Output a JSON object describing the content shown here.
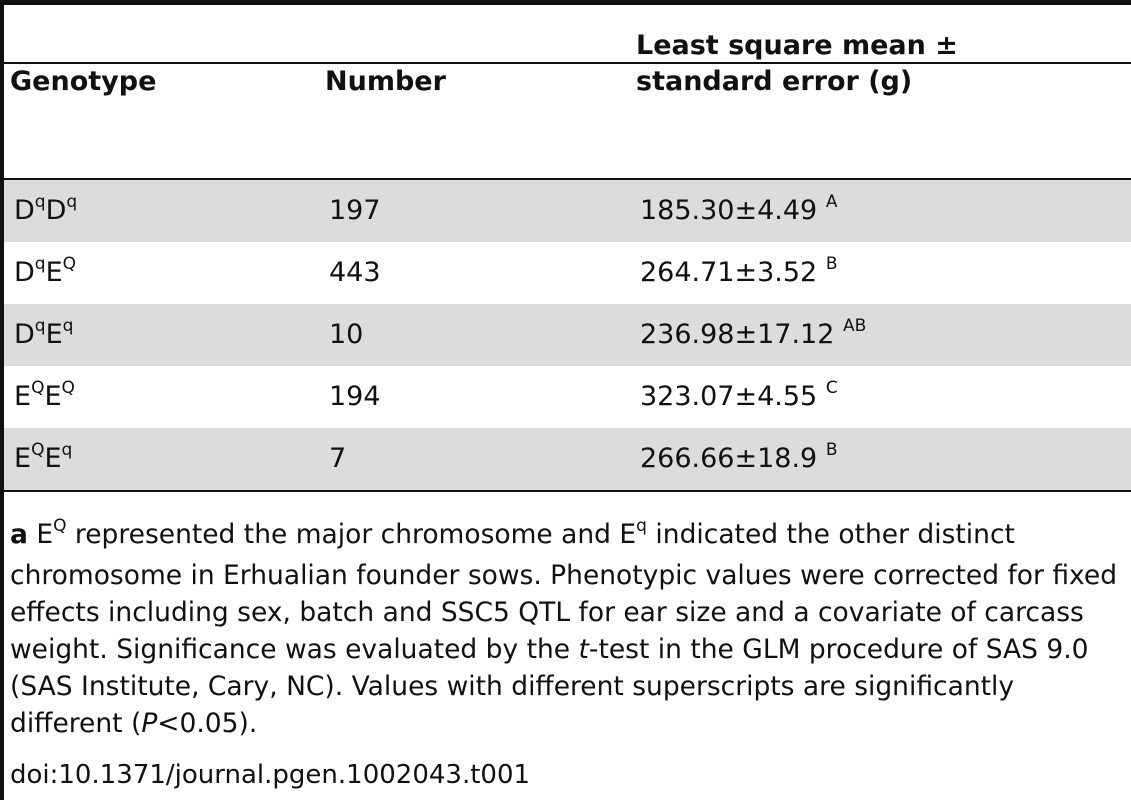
{
  "table": {
    "headers": {
      "genotype": "Genotype",
      "number": "Number",
      "lsm_line1": "Least square mean ±",
      "lsm_line2": "standard error (g)"
    },
    "rows": [
      {
        "g1": "D",
        "s1": "q",
        "g2": "D",
        "s2": "q",
        "number": "197",
        "value": "185.30±4.49",
        "letter": "A"
      },
      {
        "g1": "D",
        "s1": "q",
        "g2": "E",
        "s2": "Q",
        "number": "443",
        "value": "264.71±3.52",
        "letter": "B"
      },
      {
        "g1": "D",
        "s1": "q",
        "g2": "E",
        "s2": "q",
        "number": "10",
        "value": "236.98±17.12",
        "letter": "AB"
      },
      {
        "g1": "E",
        "s1": "Q",
        "g2": "E",
        "s2": "Q",
        "number": "194",
        "value": "323.07±4.55",
        "letter": "C"
      },
      {
        "g1": "E",
        "s1": "Q",
        "g2": "E",
        "s2": "q",
        "number": "7",
        "value": "266.66±18.9",
        "letter": "B"
      }
    ]
  },
  "footnote": {
    "marker": "a",
    "t1": "E",
    "sup1": "Q",
    "t2": "represented the major chromosome and E",
    "sup2": "q",
    "t3": "indicated the other distinct chromosome in Erhualian founder sows. Phenotypic values were corrected for fixed effects including sex, batch and SSC5 QTL for ear size and a covariate of carcass weight. Significance was evaluated by the",
    "t_italic": "t",
    "t4": "-test in the GLM procedure of SAS 9.0 (SAS Institute, Cary, NC). Values with different superscripts are significantly different (",
    "p_italic": "P",
    "t5": "<0.05)."
  },
  "doi": "doi:10.1371/journal.pgen.1002043.t001"
}
